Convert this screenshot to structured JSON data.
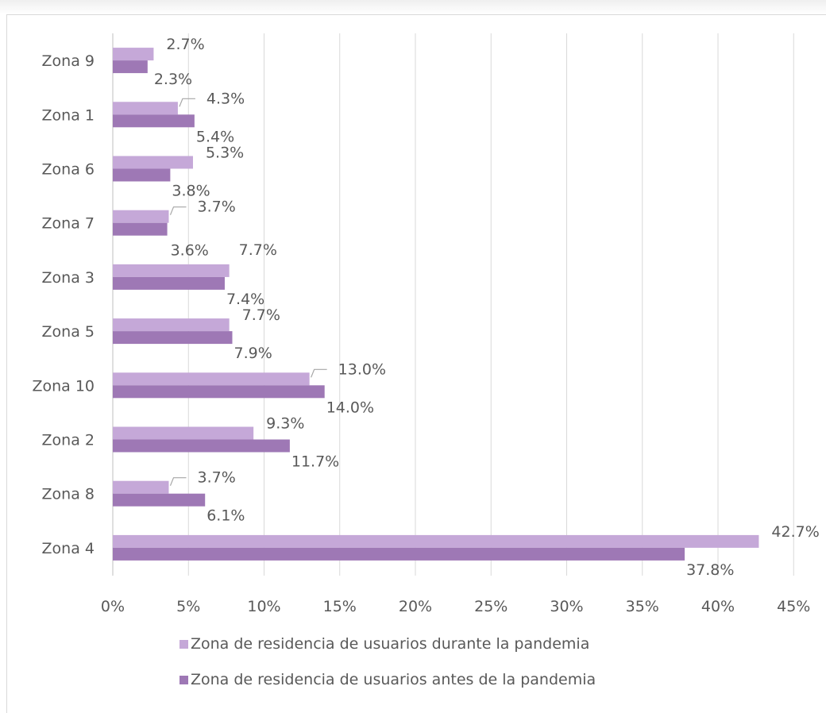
{
  "chart_data": {
    "type": "bar",
    "orientation": "horizontal",
    "categories": [
      "Zona 9",
      "Zona 1",
      "Zona 6",
      "Zona 7",
      "Zona 3",
      "Zona 5",
      "Zona 10",
      "Zona 2",
      "Zona 8",
      "Zona 4"
    ],
    "series": [
      {
        "name": "Zona de residencia de usuarios durante la pandemia",
        "color": "#c5a8d8",
        "values": [
          2.7,
          4.3,
          5.3,
          3.7,
          7.7,
          7.7,
          13.0,
          9.3,
          3.7,
          42.7
        ],
        "labels": [
          "2.7%",
          "4.3%",
          "5.3%",
          "3.7%",
          "7.7%",
          "7.7%",
          "13.0%",
          "9.3%",
          "3.7%",
          "42.7%"
        ]
      },
      {
        "name": "Zona de residencia de usuarios antes de la pandemia",
        "color": "#9e78b5",
        "values": [
          2.3,
          5.4,
          3.8,
          3.6,
          7.4,
          7.9,
          14.0,
          11.7,
          6.1,
          37.8
        ],
        "labels": [
          "2.3%",
          "5.4%",
          "3.8%",
          "3.6%",
          "7.4%",
          "7.9%",
          "14.0%",
          "11.7%",
          "6.1%",
          "37.8%"
        ]
      }
    ],
    "xlim": [
      0,
      45
    ],
    "x_ticks": [
      "0%",
      "5%",
      "10%",
      "15%",
      "20%",
      "25%",
      "30%",
      "35%",
      "40%",
      "45%"
    ],
    "grid": true,
    "legend_position": "bottom"
  }
}
